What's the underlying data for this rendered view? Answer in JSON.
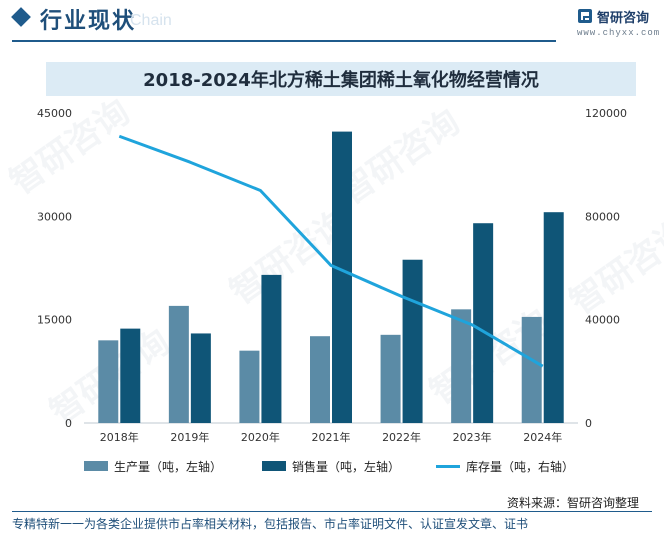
{
  "header": {
    "title": "行业现状",
    "ghost_text": "Chain",
    "brand_name": "智研咨询",
    "brand_url": "www.chyxx.com"
  },
  "chart_data": {
    "type": "bar",
    "title": "2018-2024年北方稀土集团稀土氧化物经营情况",
    "categories": [
      "2018年",
      "2019年",
      "2020年",
      "2021年",
      "2022年",
      "2023年",
      "2024年"
    ],
    "series": [
      {
        "name": "生产量（吨，左轴）",
        "type": "bar",
        "axis": "left",
        "color": "#5b8ba6",
        "values": [
          12000,
          17000,
          10500,
          12600,
          12800,
          16500,
          15400
        ]
      },
      {
        "name": "销售量（吨，左轴）",
        "type": "bar",
        "axis": "left",
        "color": "#0f5577",
        "values": [
          13700,
          13000,
          21500,
          42300,
          23700,
          29000,
          30600
        ]
      },
      {
        "name": "库存量（吨，右轴）",
        "type": "line",
        "axis": "right",
        "color": "#1fa4dc",
        "values": [
          111000,
          101000,
          90000,
          61000,
          49000,
          38000,
          22000
        ]
      }
    ],
    "ylim_left": [
      0,
      45000
    ],
    "yticks_left": [
      0,
      15000,
      30000,
      45000
    ],
    "ylim_right": [
      0,
      120000
    ],
    "yticks_right": [
      0,
      40000,
      80000,
      120000
    ],
    "legend_position": "bottom"
  },
  "source": "资料来源：智研咨询整理",
  "footer": "专精特新一一为各类企业提供市占率相关材料，包括报告、市占率证明文件、认证宣发文章、证书",
  "watermark": "智研咨询"
}
